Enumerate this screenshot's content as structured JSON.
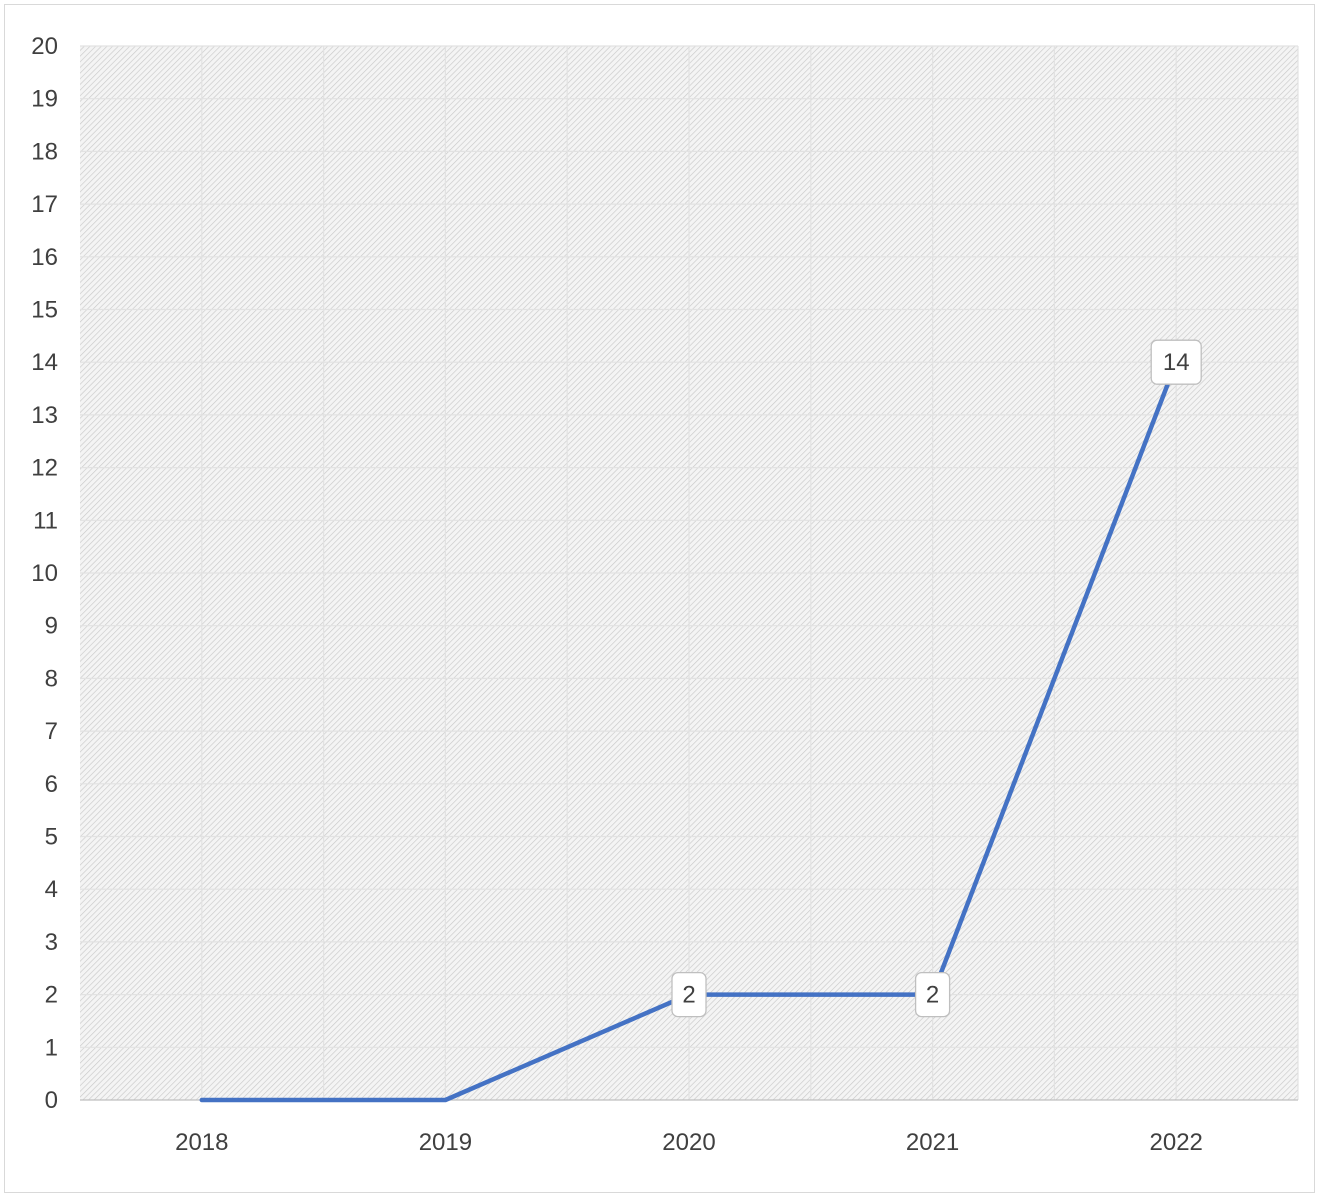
{
  "chart_data": {
    "type": "line",
    "title": "",
    "xlabel": "",
    "ylabel": "",
    "categories": [
      "2018",
      "2019",
      "2020",
      "2021",
      "2022"
    ],
    "series": [
      {
        "values": [
          0,
          0,
          2,
          2,
          14
        ],
        "color": "#4472C4"
      }
    ],
    "data_labels": [
      null,
      null,
      "2",
      "2",
      "14"
    ],
    "ylim": [
      0,
      20
    ],
    "ytick_step": 1,
    "grid": true,
    "plot_fill": "hatched light gray",
    "legend": "none"
  }
}
